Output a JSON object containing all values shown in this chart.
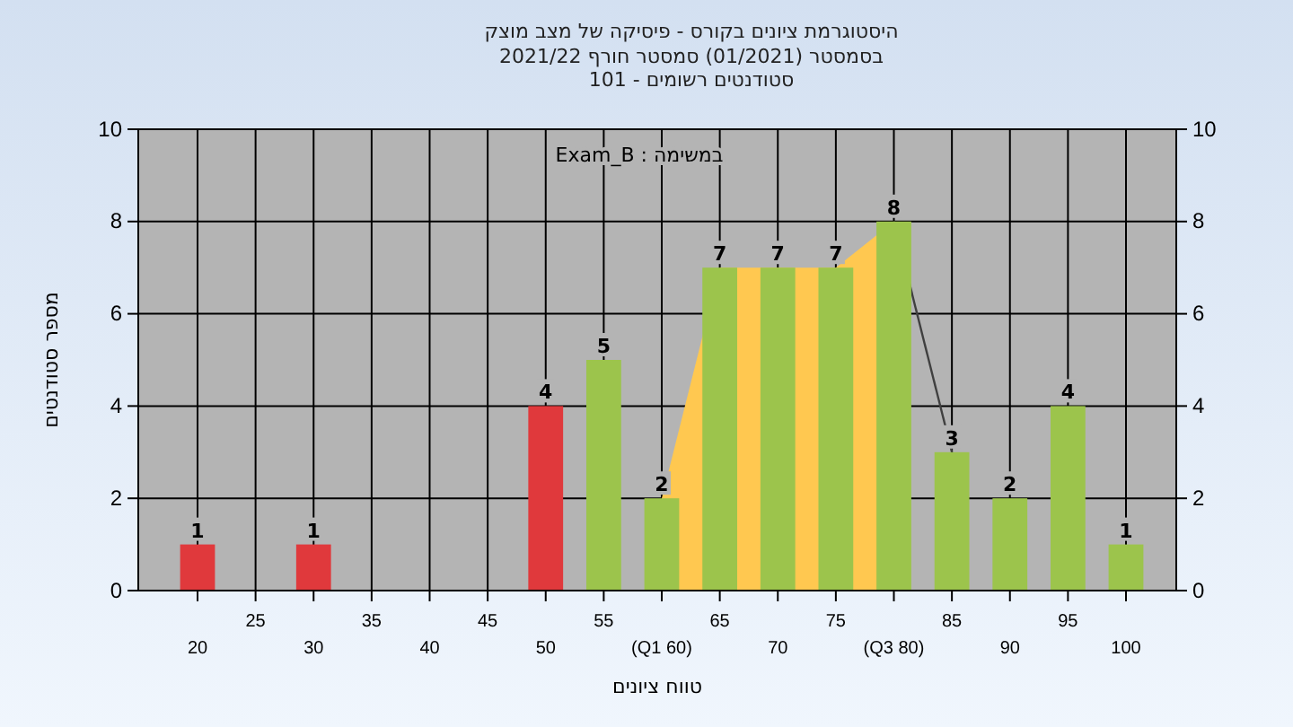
{
  "chart_data": {
    "type": "bar",
    "title": "היסטוגרמת ציונים בקורס - פיסיקה של מצב מוצק",
    "subtitle": "בסמסטר  (01/2021)  סמסטר חורף 2021/22\nסטודנטים רשומים - 101",
    "xlabel": "טווח ציונים",
    "ylabel": "מספר סטודנטים",
    "annotations": [
      "במשימה : Exam_B"
    ],
    "categories": [
      "20",
      "25",
      "30",
      "35",
      "40",
      "45",
      "50",
      "55",
      "(Q1 60)",
      "65",
      "70",
      "75",
      "(Q3 80)",
      "85",
      "90",
      "95",
      "100"
    ],
    "series": [
      {
        "type": "area",
        "color": "#ffc850",
        "values": [
          null,
          null,
          null,
          null,
          null,
          null,
          null,
          null,
          2,
          7,
          7,
          7,
          8,
          null,
          null,
          null,
          null
        ]
      },
      {
        "type": "line",
        "color": "#404040",
        "values": [
          null,
          null,
          null,
          null,
          null,
          null,
          null,
          null,
          null,
          null,
          null,
          null,
          8,
          3,
          null,
          null,
          null
        ]
      },
      {
        "colors": [
          "#e0393c",
          "#e0393c",
          "#e0393c",
          "#e0393c",
          "#e0393c",
          "#e0393c",
          "#e0393c",
          "#9cc44c",
          "#9cc44c",
          "#9cc44c",
          "#9cc44c",
          "#9cc44c",
          "#9cc44c",
          "#9cc44c",
          "#9cc44c",
          "#9cc44c",
          "#9cc44c"
        ],
        "values": [
          1,
          0,
          1,
          0,
          0,
          0,
          4,
          5,
          2,
          7,
          7,
          7,
          8,
          3,
          2,
          4,
          1
        ],
        "value_labels": [
          "1",
          null,
          "1",
          null,
          null,
          null,
          "4",
          "5",
          "2",
          "7",
          "7",
          "7",
          "8",
          "3",
          "2",
          "4",
          "1"
        ]
      }
    ],
    "ylim": [
      0,
      10
    ],
    "yticks": [
      0,
      2,
      4,
      6,
      8,
      10
    ],
    "y2lim": [
      0,
      10
    ],
    "y2ticks": [
      0,
      2,
      4,
      6,
      8,
      10
    ],
    "grid": true
  }
}
